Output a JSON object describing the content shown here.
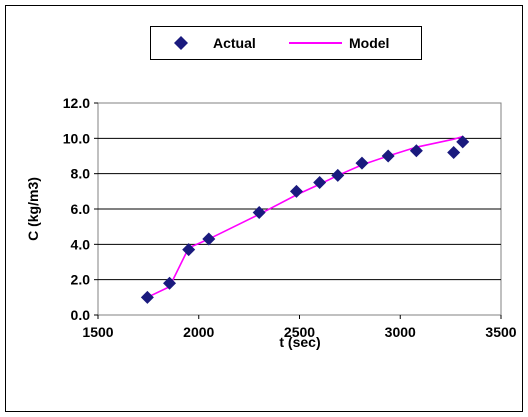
{
  "chart_data": {
    "type": "scatter",
    "xlabel": "t (sec)",
    "ylabel": "C (kg/m3)",
    "xlim": [
      1500,
      3500
    ],
    "ylim": [
      0,
      12
    ],
    "x_ticks": [
      1500,
      2000,
      2500,
      3000,
      3500
    ],
    "y_ticks": [
      0,
      2,
      4,
      6,
      8,
      10,
      12
    ],
    "x_tick_labels": [
      "1500",
      "2000",
      "2500",
      "3000",
      "3500"
    ],
    "y_tick_labels": [
      "0.0",
      "2.0",
      "4.0",
      "6.0",
      "8.0",
      "10.0",
      "12.0"
    ],
    "grid": "horizontal",
    "legend_position": "top",
    "series": [
      {
        "name": "Actual",
        "type": "scatter",
        "marker": "diamond",
        "color": "#1a1a7e",
        "x": [
          1745,
          1855,
          1950,
          2050,
          2300,
          2485,
          2600,
          2690,
          2810,
          2940,
          3080,
          3265,
          3310
        ],
        "y": [
          1.0,
          1.8,
          3.7,
          4.3,
          5.8,
          7.0,
          7.5,
          7.9,
          8.6,
          9.0,
          9.3,
          9.2,
          9.8
        ]
      },
      {
        "name": "Model",
        "type": "line",
        "color": "#ff00ff",
        "x": [
          1745,
          1855,
          1950,
          2050,
          2300,
          2485,
          2600,
          2690,
          2810,
          2940,
          3080,
          3265,
          3310
        ],
        "y": [
          1.0,
          1.6,
          3.8,
          4.3,
          5.7,
          6.8,
          7.4,
          7.9,
          8.5,
          9.0,
          9.5,
          9.95,
          10.1
        ]
      }
    ]
  }
}
